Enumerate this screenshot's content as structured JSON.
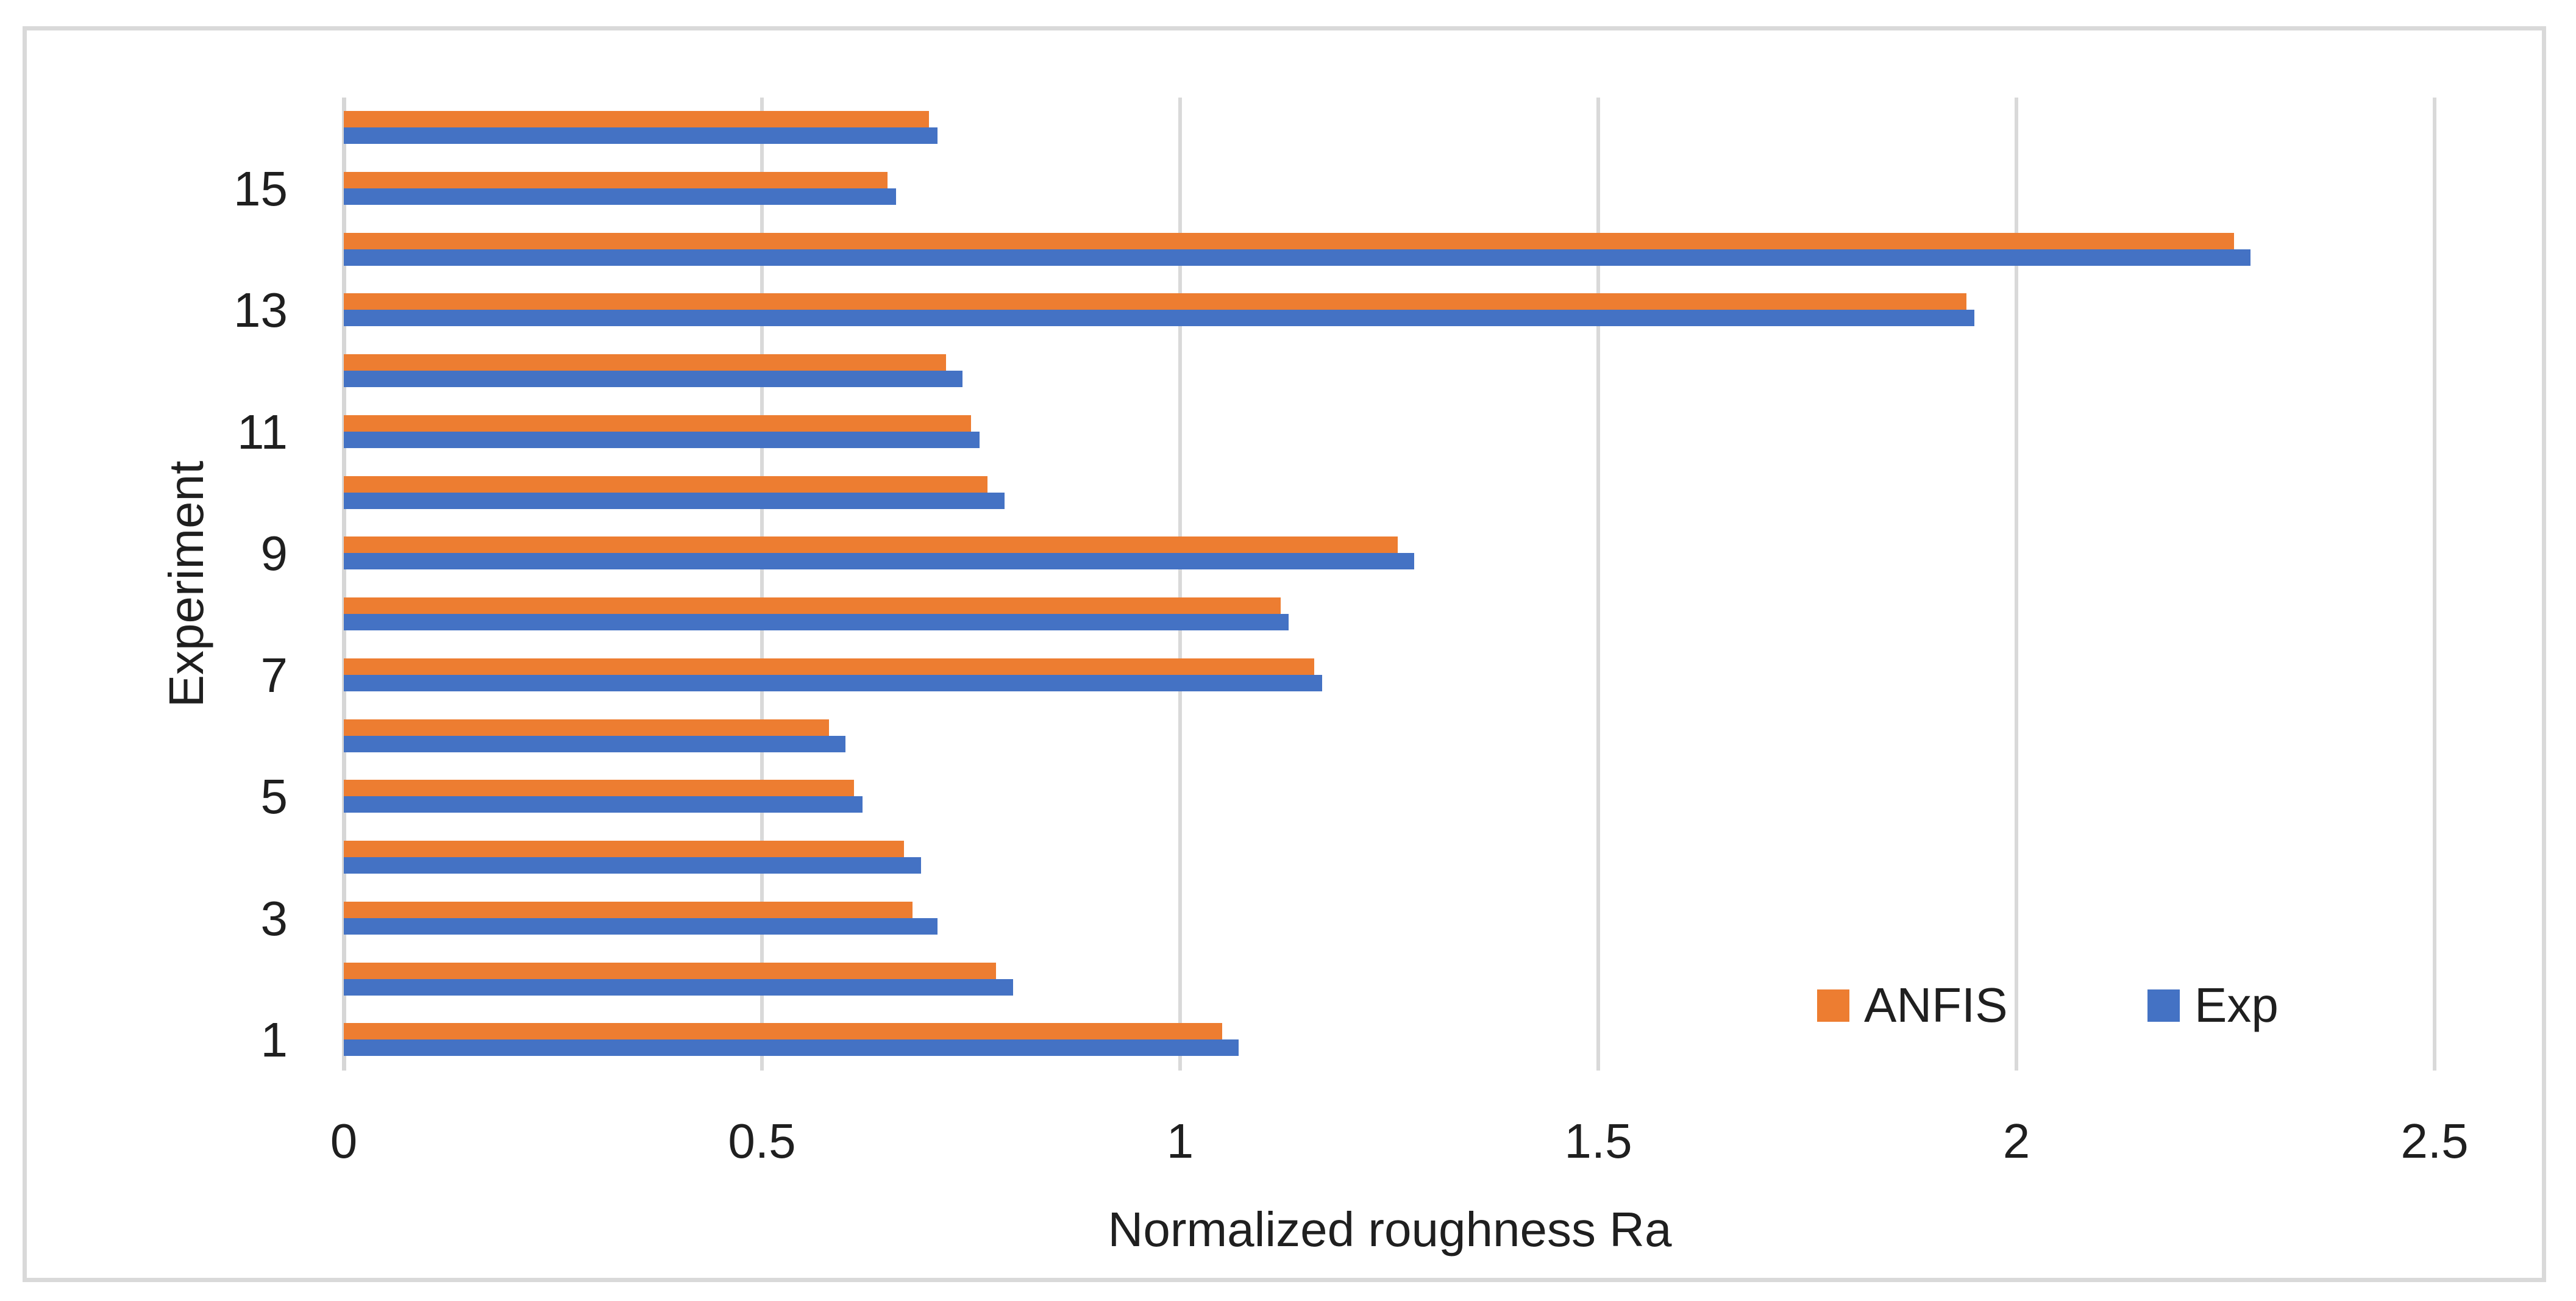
{
  "chart_data": {
    "type": "bar",
    "orientation": "horizontal",
    "title": "",
    "xlabel": "Normalized roughness Ra",
    "ylabel": "Experiment",
    "xlim": [
      0,
      2.5
    ],
    "x_ticks": [
      0,
      0.5,
      1,
      1.5,
      2,
      2.5
    ],
    "x_tick_labels": [
      "0",
      "0.5",
      "1",
      "1.5",
      "2",
      "2.5"
    ],
    "categories": [
      1,
      2,
      3,
      4,
      5,
      6,
      7,
      8,
      9,
      10,
      11,
      12,
      13,
      14,
      15,
      16
    ],
    "y_tick_labels_shown": [
      "1",
      "3",
      "5",
      "7",
      "9",
      "11",
      "13",
      "15"
    ],
    "grid": true,
    "legend_position": "bottom-right",
    "series": [
      {
        "name": "ANFIS",
        "color": "#ED7D31",
        "values": [
          1.05,
          0.78,
          0.68,
          0.67,
          0.61,
          0.58,
          1.16,
          1.12,
          1.26,
          0.77,
          0.75,
          0.72,
          1.94,
          2.26,
          0.65,
          0.7
        ]
      },
      {
        "name": "Exp",
        "color": "#4472C4",
        "values": [
          1.07,
          0.8,
          0.71,
          0.69,
          0.62,
          0.6,
          1.17,
          1.13,
          1.28,
          0.79,
          0.76,
          0.74,
          1.95,
          2.28,
          0.66,
          0.71
        ]
      }
    ]
  },
  "colors": {
    "anfis": "#ED7D31",
    "exp": "#4472C4",
    "gridline": "#D9D9D9",
    "text": "#1f1f1f",
    "border": "#D9D9D9"
  },
  "legend": {
    "anfis_label": "ANFIS",
    "exp_label": "Exp"
  },
  "axes": {
    "x_title": "Normalized roughness Ra",
    "y_title": "Experiment"
  }
}
